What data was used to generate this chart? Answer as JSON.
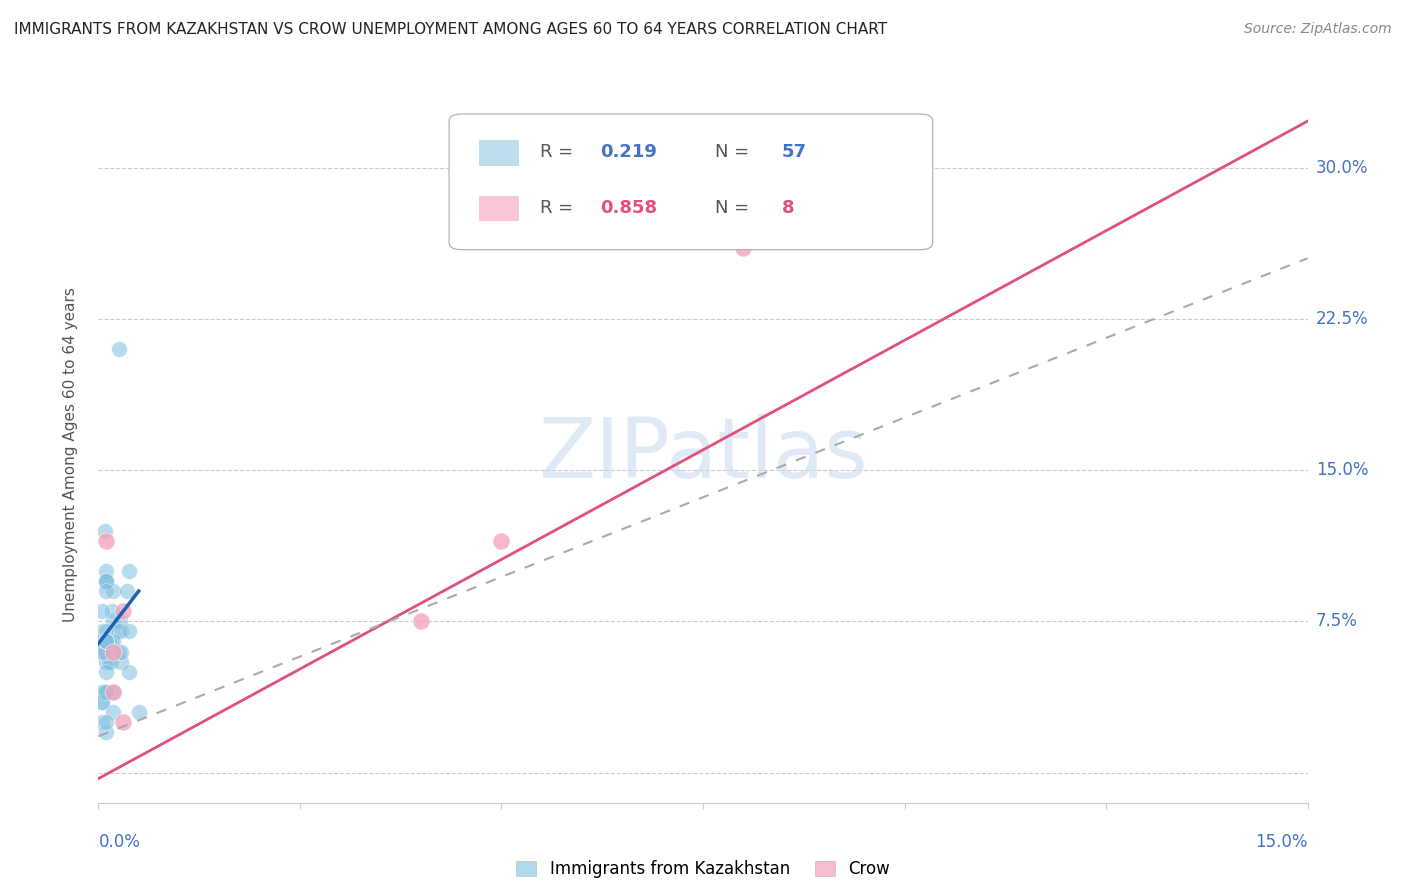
{
  "title": "IMMIGRANTS FROM KAZAKHSTAN VS CROW UNEMPLOYMENT AMONG AGES 60 TO 64 YEARS CORRELATION CHART",
  "source": "Source: ZipAtlas.com",
  "ylabel": "Unemployment Among Ages 60 to 64 years",
  "ytick_labels": [
    "",
    "7.5%",
    "15.0%",
    "22.5%",
    "30.0%"
  ],
  "ytick_values": [
    0,
    0.075,
    0.15,
    0.225,
    0.3
  ],
  "xlim": [
    0.0,
    0.15
  ],
  "ylim": [
    -0.015,
    0.33
  ],
  "watermark": "ZIPatlas",
  "blue_color": "#7fbfdf",
  "pink_color": "#f4a0b8",
  "line_blue": "#2060b0",
  "line_pink": "#e0507a",
  "line_dash_color": "#aaaaaa",
  "kazakhstan_x": [
    0.0018,
    0.0008,
    0.0025,
    0.0009,
    0.001,
    0.0004,
    0.0009,
    0.0016,
    0.0028,
    0.0038,
    0.001,
    0.0018,
    0.0017,
    0.0027,
    0.0025,
    0.0035,
    0.0009,
    0.0004,
    0.001,
    0.0009,
    0.0008,
    0.0004,
    0.0005,
    0.0009,
    0.0016,
    0.0008,
    0.0013,
    0.0009,
    0.0028,
    0.0026,
    0.0009,
    0.0028,
    0.0038,
    0.0009,
    0.0004,
    0.0004,
    0.0007,
    0.0019,
    0.005,
    0.0038,
    0.0009,
    0.0018,
    0.001,
    0.0013,
    0.0004,
    0.0009,
    0.0004,
    0.0009,
    0.0018,
    0.0009,
    0.0004,
    0.0009,
    0.001,
    0.0009,
    0.001,
    0.001,
    0.001
  ],
  "kazakhstan_y": [
    0.075,
    0.12,
    0.21,
    0.095,
    0.1,
    0.07,
    0.065,
    0.065,
    0.07,
    0.1,
    0.095,
    0.09,
    0.08,
    0.075,
    0.07,
    0.09,
    0.095,
    0.08,
    0.09,
    0.065,
    0.065,
    0.065,
    0.065,
    0.055,
    0.055,
    0.06,
    0.055,
    0.05,
    0.055,
    0.06,
    0.065,
    0.06,
    0.07,
    0.04,
    0.035,
    0.04,
    0.04,
    0.04,
    0.03,
    0.05,
    0.065,
    0.065,
    0.06,
    0.065,
    0.06,
    0.07,
    0.025,
    0.02,
    0.03,
    0.025,
    0.035,
    0.04,
    0.065,
    0.065,
    0.065,
    0.065,
    0.065
  ],
  "crow_x": [
    0.001,
    0.0018,
    0.0018,
    0.003,
    0.05,
    0.003,
    0.08,
    0.04
  ],
  "crow_y": [
    0.115,
    0.06,
    0.04,
    0.08,
    0.115,
    0.025,
    0.26,
    0.075
  ],
  "blue_trend_x0": 0.0,
  "blue_trend_x1": 0.005,
  "blue_trend_y0": 0.064,
  "blue_trend_y1": 0.09,
  "pink_trend_x0": 0.0,
  "pink_trend_x1": 0.15,
  "pink_trend_y0": -0.003,
  "pink_trend_y1": 0.323,
  "dash_trend_x0": 0.0,
  "dash_trend_x1": 0.15,
  "dash_trend_y0": 0.018,
  "dash_trend_y1": 0.255
}
